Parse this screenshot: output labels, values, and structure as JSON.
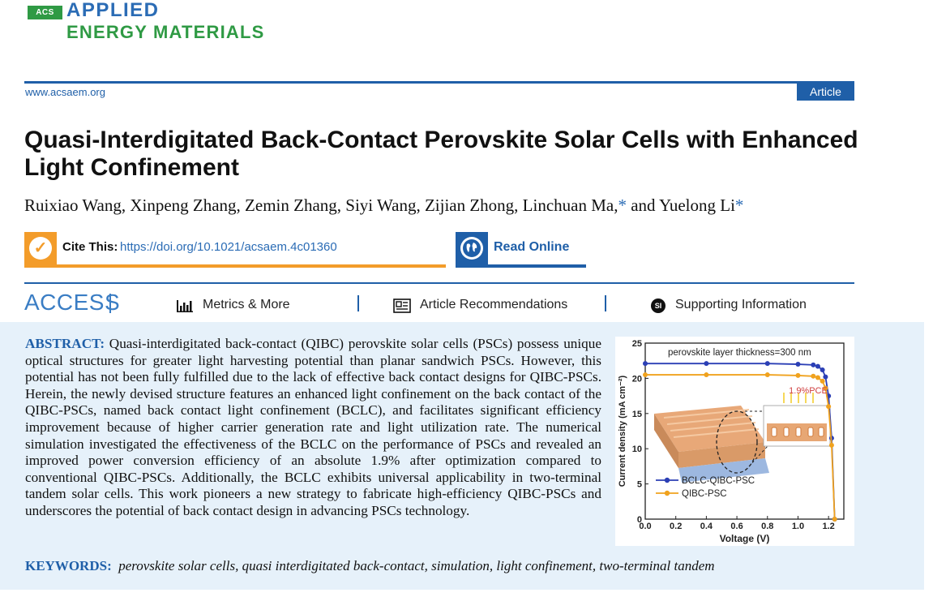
{
  "journal": {
    "acs_badge": "ACS",
    "name_line1": "APPLIED",
    "name_line2": "ENERGY MATERIALS",
    "url": "www.acsaem.org",
    "article_type": "Article"
  },
  "paper": {
    "title": "Quasi-Interdigitated Back-Contact Perovskite Solar Cells with Enhanced Light Confinement",
    "authors_main": "Ruixiao Wang, Xinpeng Zhang, Zemin Zhang, Siyi Wang, Zijian Zhong, Linchuan Ma,",
    "authors_and": " and Yuelong Li",
    "corresponding_mark": "*"
  },
  "links": {
    "cite_label": "Cite This:",
    "cite_doi": "https://doi.org/10.1021/acsaem.4c01360",
    "read_online": "Read Online"
  },
  "access_bar": {
    "access_label": "ACCESS",
    "metrics": "Metrics & More",
    "recommendations": "Article Recommendations",
    "supporting": "Supporting Information",
    "si_badge": "SI"
  },
  "abstract": {
    "heading": "ABSTRACT:",
    "text": "Quasi-interdigitated back-contact (QIBC) perovskite solar cells (PSCs) possess unique optical structures for greater light harvesting potential than planar sandwich PSCs. However, this potential has not been fully fulfilled due to the lack of effective back contact designs for QIBC-PSCs. Herein, the newly devised structure features an enhanced light confinement on the back contact of the QIBC-PSCs, named back contact light confinement (BCLC), and facilitates significant efficiency improvement because of higher carrier generation rate and light utilization rate. The numerical simulation investigated the effectiveness of the BCLC on the performance of PSCs and revealed an improved power conversion efficiency of an absolute 1.9% after optimization compared to conventional QIBC-PSCs. Additionally, the BCLC exhibits universal applicability in two-terminal tandem solar cells. This work pioneers a new strategy to fabricate high-efficiency QIBC-PSCs and underscores the potential of back contact design in advancing PSCs technology."
  },
  "keywords": {
    "heading": "KEYWORDS:",
    "text": "perovskite solar cells, quasi interdigitated back-contact, simulation, light confinement, two-terminal tandem"
  },
  "chart_data": {
    "type": "line",
    "title": "perovskite layer thickness=300 nm",
    "xlabel": "Voltage (V)",
    "ylabel": "Current density (mA cm⁻²)",
    "xlim": [
      0,
      1.3
    ],
    "ylim": [
      0,
      25
    ],
    "xticks": [
      0.0,
      0.2,
      0.4,
      0.6,
      0.8,
      1.0,
      1.2
    ],
    "xtick_labels": [
      "0.0",
      "0.2",
      "0.4",
      "0.6",
      "0.8",
      "1.0",
      "1.2"
    ],
    "yticks": [
      0,
      5,
      10,
      15,
      20,
      25
    ],
    "annotation": "1.9%PCE",
    "legend_position": "lower-left",
    "series": [
      {
        "name": "BCLC-QIBC-PSC",
        "color": "#2b3fb5",
        "x": [
          0.0,
          0.4,
          0.8,
          1.0,
          1.1,
          1.13,
          1.16,
          1.18,
          1.2,
          1.22,
          1.24
        ],
        "y": [
          22.1,
          22.1,
          22.1,
          22.0,
          21.9,
          21.7,
          21.2,
          20.2,
          17.5,
          11.5,
          0.0
        ]
      },
      {
        "name": "QIBC-PSC",
        "color": "#f0a21e",
        "x": [
          0.0,
          0.4,
          0.8,
          1.0,
          1.1,
          1.13,
          1.16,
          1.18,
          1.2,
          1.22,
          1.24
        ],
        "y": [
          20.5,
          20.5,
          20.5,
          20.4,
          20.3,
          20.1,
          19.6,
          18.6,
          16.0,
          10.5,
          0.0
        ]
      }
    ]
  },
  "colors": {
    "brand_blue": "#1f5fa8",
    "brand_green": "#2f9a44",
    "cite_orange": "#f39c2a",
    "abstract_bg": "#e6f1fa"
  }
}
